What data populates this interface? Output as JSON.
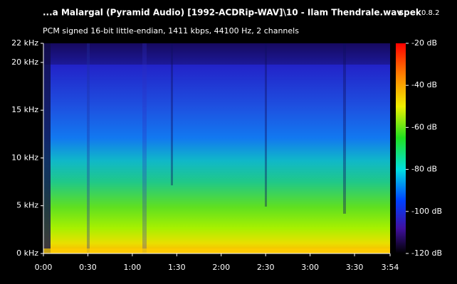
{
  "chart_data": {
    "type": "spectrogram",
    "title": "...a Malargal (Pyramid Audio) [1992-ACDRip-WAV]\\10 - Ilam Thendrale.wav",
    "app_name": "spek",
    "app_version": "0.8.2",
    "subtitle": "PCM signed 16-bit little-endian, 1411 kbps, 44100 Hz, 2 channels",
    "xlim": [
      0,
      234
    ],
    "xticks": [
      {
        "value": 0,
        "label": "0:00"
      },
      {
        "value": 30,
        "label": "0:30"
      },
      {
        "value": 60,
        "label": "1:00"
      },
      {
        "value": 90,
        "label": "1:30"
      },
      {
        "value": 120,
        "label": "2:00"
      },
      {
        "value": 150,
        "label": "2:30"
      },
      {
        "value": 180,
        "label": "3:00"
      },
      {
        "value": 210,
        "label": "3:30"
      },
      {
        "value": 234,
        "label": "3:54"
      }
    ],
    "ylim": [
      0,
      22
    ],
    "yticks": [
      {
        "value": 0,
        "label": "0 kHz"
      },
      {
        "value": 5,
        "label": "5 kHz"
      },
      {
        "value": 10,
        "label": "10 kHz"
      },
      {
        "value": 15,
        "label": "15 kHz"
      },
      {
        "value": 20,
        "label": "20 kHz"
      },
      {
        "value": 22,
        "label": "22 kHz"
      }
    ],
    "zlim": [
      -120,
      -20
    ],
    "zticks": [
      {
        "value": -20,
        "label": "-20 dB"
      },
      {
        "value": -40,
        "label": "-40 dB"
      },
      {
        "value": -60,
        "label": "-60 dB"
      },
      {
        "value": -80,
        "label": "-80 dB"
      },
      {
        "value": -100,
        "label": "-100 dB"
      },
      {
        "value": -120,
        "label": "-120 dB"
      }
    ]
  }
}
